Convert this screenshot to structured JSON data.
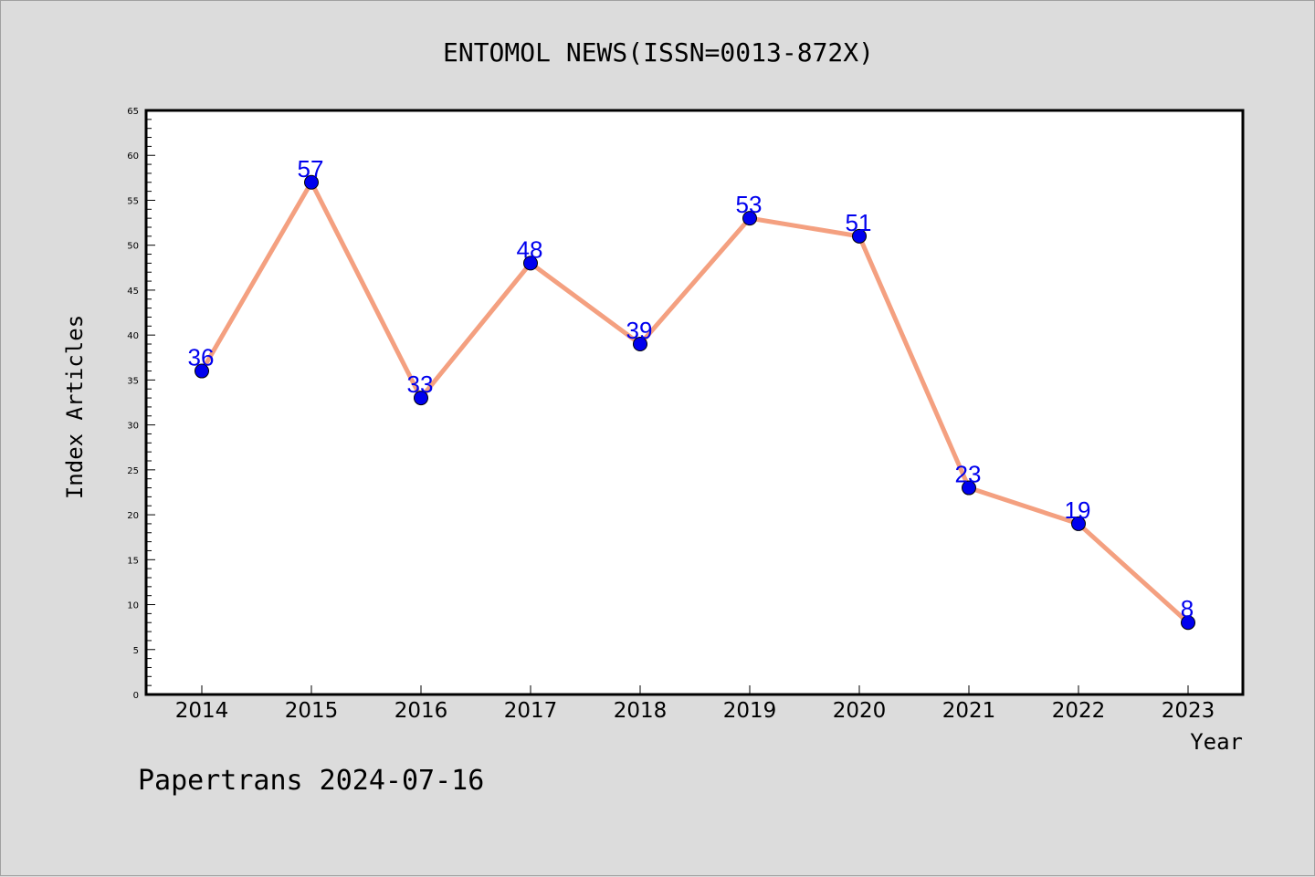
{
  "chart_data": {
    "type": "line",
    "title": "ENTOMOL NEWS(ISSN=0013-872X)",
    "xlabel": "Year",
    "ylabel": "Index Articles",
    "categories": [
      "2014",
      "2015",
      "2016",
      "2017",
      "2018",
      "2019",
      "2020",
      "2021",
      "2022",
      "2023"
    ],
    "series": [
      {
        "values": [
          36,
          57,
          33,
          48,
          39,
          53,
          51,
          23,
          19,
          8
        ]
      }
    ],
    "ylim": [
      0,
      65
    ],
    "y_ticks": [
      0,
      5,
      10,
      15,
      20,
      25,
      30,
      35,
      40,
      45,
      50,
      55,
      60,
      65
    ],
    "grid": false,
    "data_labels": true,
    "colors": {
      "line": "#f4a080",
      "marker": "#0000ee",
      "label": "#0000ee",
      "background": "#dcdcdc",
      "plot_area": "#ffffff"
    }
  },
  "footer": "Papertrans 2024-07-16"
}
